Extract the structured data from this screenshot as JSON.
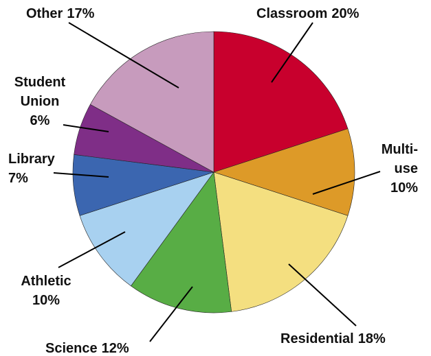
{
  "chart_data": {
    "type": "pie",
    "categories": [
      "Classroom",
      "Multi-use",
      "Residential",
      "Science",
      "Athletic",
      "Library",
      "Student Union",
      "Other"
    ],
    "values": [
      20,
      10,
      18,
      12,
      10,
      7,
      6,
      17
    ],
    "value_labels": [
      "20%",
      "10%",
      "18%",
      "12%",
      "10%",
      "7%",
      "6%",
      "17%"
    ],
    "colors": [
      "#c8002d",
      "#dd9a28",
      "#f4df80",
      "#58ad45",
      "#a8d1f0",
      "#3b66b0",
      "#7f2e87",
      "#c79bbd"
    ]
  }
}
